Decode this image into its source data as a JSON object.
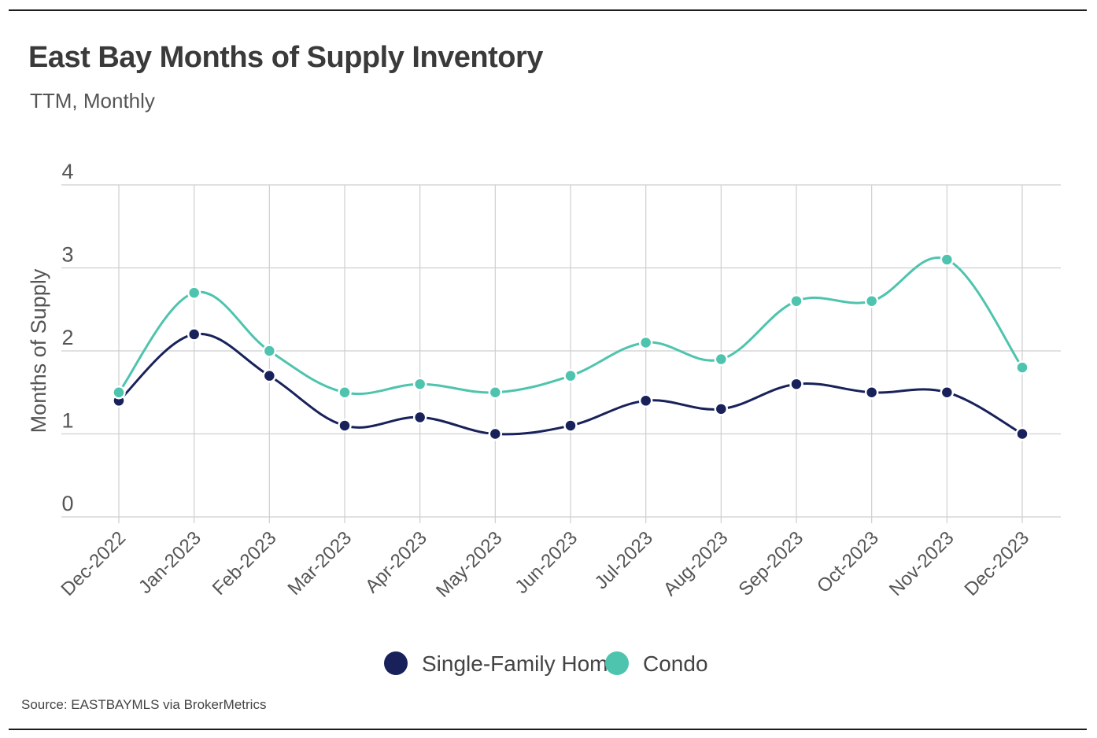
{
  "header": {
    "title": "East Bay Months of Supply Inventory",
    "subtitle": "TTM, Monthly"
  },
  "footer": {
    "source": "Source:  EASTBAYMLS via BrokerMetrics"
  },
  "colors": {
    "sfh": "#18215a",
    "condo": "#4ec4ae",
    "grid": "#cfcfcf"
  },
  "chart_data": {
    "type": "line",
    "title": "East Bay Months of Supply Inventory",
    "subtitle": "TTM, Monthly",
    "xlabel": "",
    "ylabel": "Months of Supply",
    "ylim": [
      0,
      4
    ],
    "yticks": [
      "0",
      "1",
      "2",
      "3",
      "4"
    ],
    "grid": true,
    "legend": "bottom-center",
    "categories": [
      "Dec-2022",
      "Jan-2023",
      "Feb-2023",
      "Mar-2023",
      "Apr-2023",
      "May-2023",
      "Jun-2023",
      "Jul-2023",
      "Aug-2023",
      "Sep-2023",
      "Oct-2023",
      "Nov-2023",
      "Dec-2023"
    ],
    "series": [
      {
        "name": "Single-Family Home",
        "color": "#18215a",
        "values": [
          1.4,
          2.2,
          1.7,
          1.1,
          1.2,
          1.0,
          1.1,
          1.4,
          1.3,
          1.6,
          1.5,
          1.5,
          1.0
        ]
      },
      {
        "name": "Condo",
        "color": "#4ec4ae",
        "values": [
          1.5,
          2.7,
          2.0,
          1.5,
          1.6,
          1.5,
          1.7,
          2.1,
          1.9,
          2.6,
          2.6,
          3.1,
          1.8
        ]
      }
    ]
  }
}
